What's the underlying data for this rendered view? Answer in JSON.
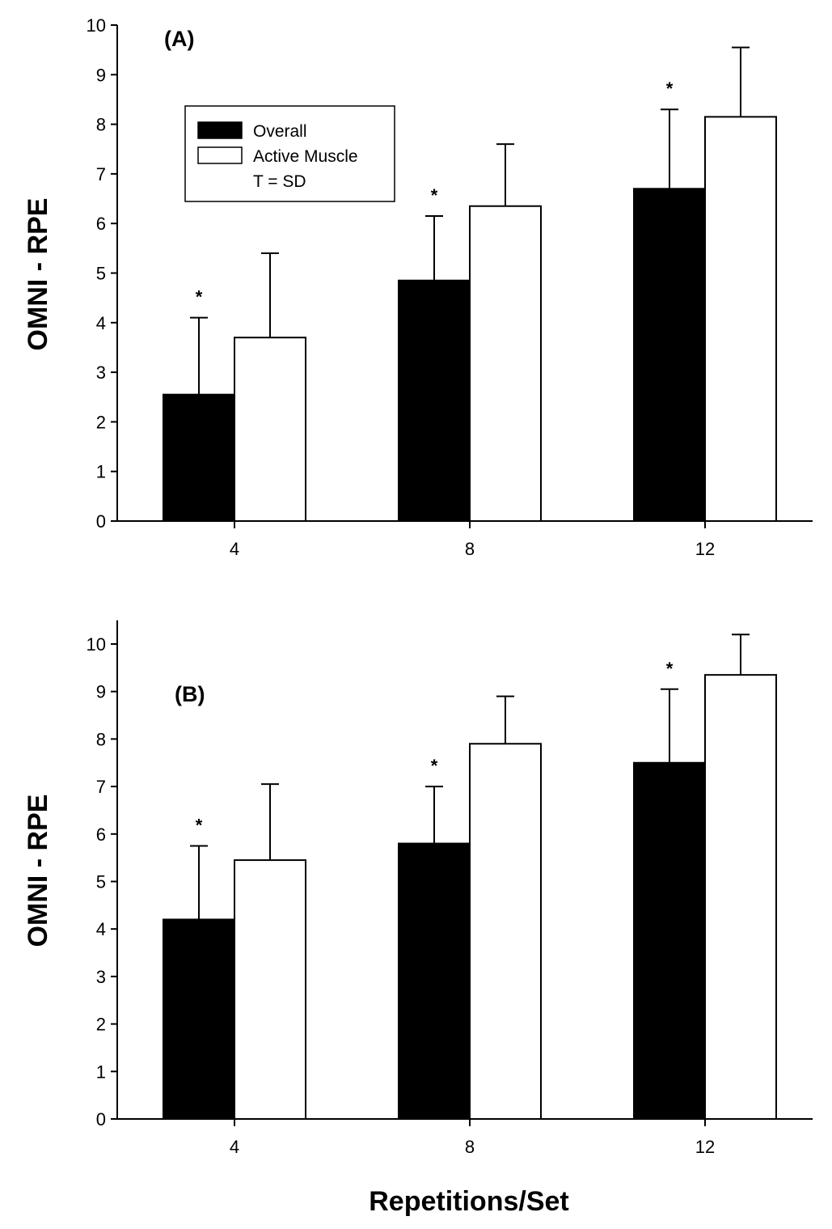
{
  "chart_data": [
    {
      "type": "bar",
      "panel_label": "(A)",
      "categories": [
        "4",
        "8",
        "12"
      ],
      "series": [
        {
          "name": "Overall",
          "values": [
            2.55,
            4.85,
            6.7
          ],
          "sd": [
            1.55,
            1.3,
            1.6
          ],
          "significance": [
            "*",
            "*",
            "*"
          ]
        },
        {
          "name": "Active Muscle",
          "values": [
            3.7,
            6.35,
            8.15
          ],
          "sd": [
            1.7,
            1.25,
            1.4
          ],
          "significance": [
            "",
            "",
            ""
          ]
        }
      ],
      "ylabel": "OMNI - RPE",
      "xlabel": "",
      "ylim": [
        0,
        10
      ],
      "yticks": [
        "0",
        "1",
        "2",
        "3",
        "4",
        "5",
        "6",
        "7",
        "8",
        "9",
        "10"
      ],
      "legend": {
        "placement": "top-left",
        "entries": [
          "Overall",
          "Active Muscle"
        ],
        "note": "T = SD"
      },
      "colors": {
        "Overall": "#000000",
        "Active Muscle": "#ffffff"
      },
      "grid": false
    },
    {
      "type": "bar",
      "panel_label": "(B)",
      "categories": [
        "4",
        "8",
        "12"
      ],
      "series": [
        {
          "name": "Overall",
          "values": [
            4.2,
            5.8,
            7.5
          ],
          "sd": [
            1.55,
            1.2,
            1.55
          ],
          "significance": [
            "*",
            "*",
            "*"
          ]
        },
        {
          "name": "Active Muscle",
          "values": [
            5.45,
            7.9,
            9.35
          ],
          "sd": [
            1.6,
            1.0,
            0.85
          ],
          "significance": [
            "",
            "",
            ""
          ]
        }
      ],
      "ylabel": "OMNI - RPE",
      "xlabel": "Repetitions/Set",
      "ylim": [
        0,
        10.5
      ],
      "yticks": [
        "0",
        "1",
        "2",
        "3",
        "4",
        "5",
        "6",
        "7",
        "8",
        "9",
        "10"
      ],
      "colors": {
        "Overall": "#000000",
        "Active Muscle": "#ffffff"
      },
      "grid": false
    }
  ]
}
